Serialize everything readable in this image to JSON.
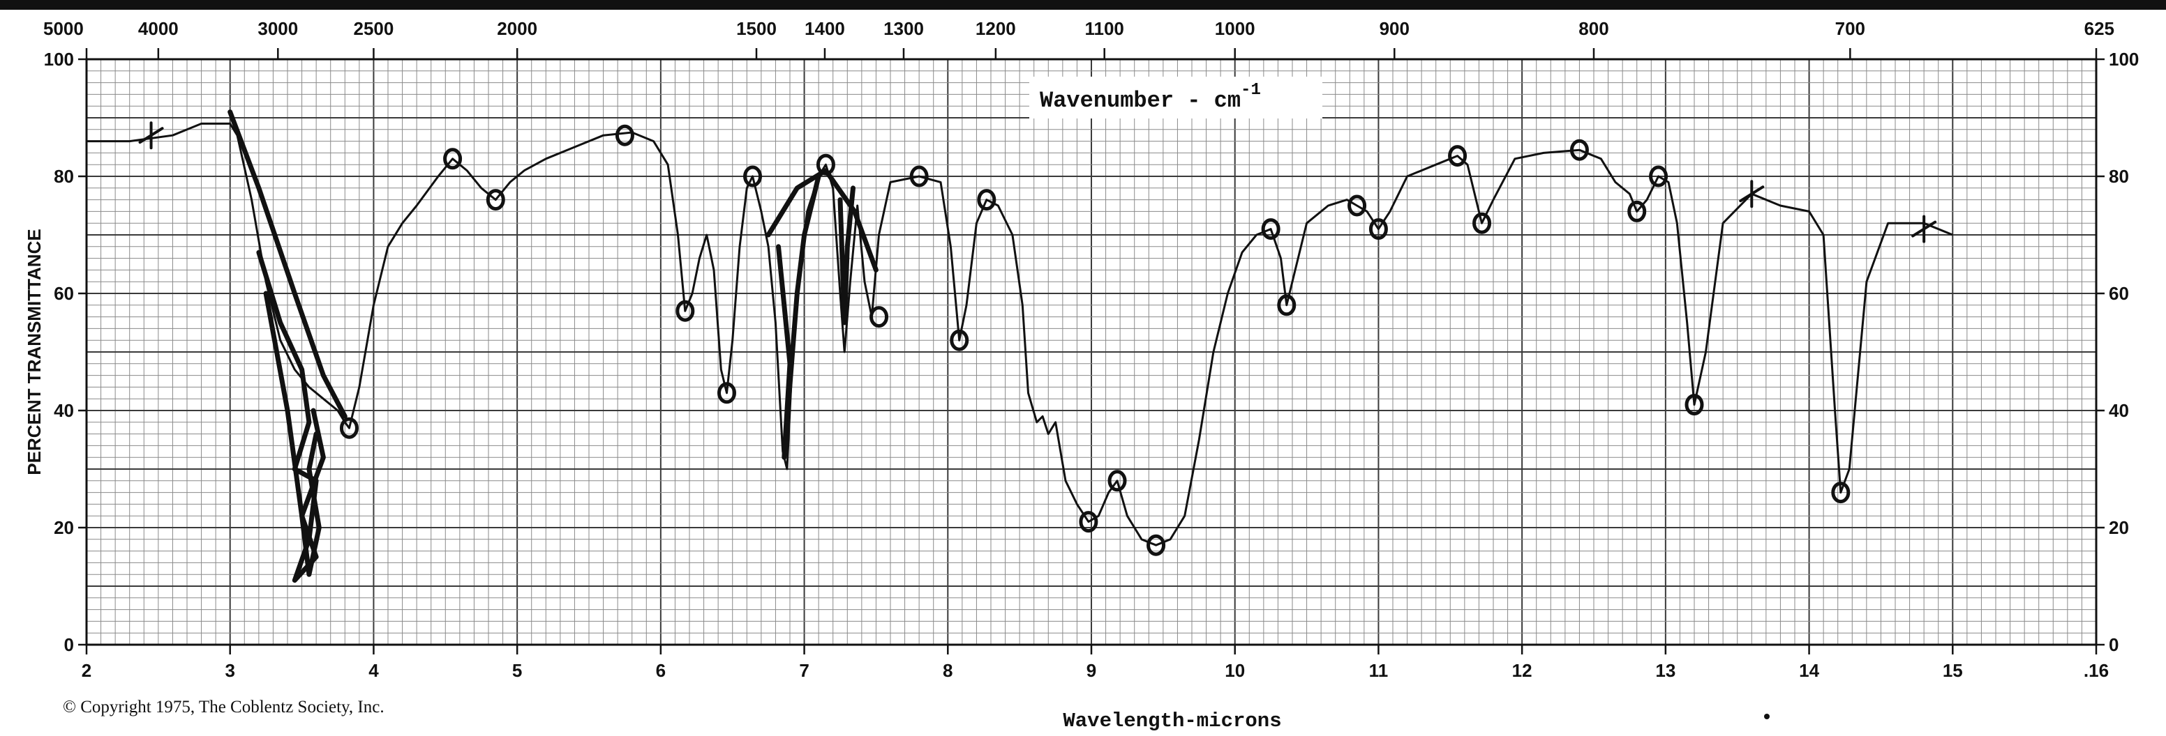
{
  "chart_data": {
    "type": "line",
    "xlabel": "Wavelength-microns",
    "top_axis_label": "Wavenumber - cm",
    "top_axis_label_sup": "-1",
    "ylabel": "PERCENT TRANSMITTANCE",
    "copyright": "© Copyright 1975, The Coblentz Society, Inc.",
    "xlim": [
      2,
      16
    ],
    "ylim": [
      0,
      100
    ],
    "grid": true,
    "x_ticks": [
      "2",
      "3",
      "4",
      "5",
      "6",
      "7",
      "8",
      "9",
      "10",
      "11",
      "12",
      "13",
      "14",
      "15",
      ".16"
    ],
    "y_ticks_left": [
      "0",
      "20",
      "40",
      "60",
      "80",
      "100"
    ],
    "y_ticks_right": [
      "0",
      "20",
      "40",
      "60",
      "80",
      "100"
    ],
    "top_ticks": [
      {
        "label": "5000",
        "wavenumber": 5000
      },
      {
        "label": "4000",
        "wavenumber": 4000
      },
      {
        "label": "3000",
        "wavenumber": 3000
      },
      {
        "label": "2500",
        "wavenumber": 2500
      },
      {
        "label": "2000",
        "wavenumber": 2000
      },
      {
        "label": "1500",
        "wavenumber": 1500
      },
      {
        "label": "1400",
        "wavenumber": 1400
      },
      {
        "label": "1300",
        "wavenumber": 1300
      },
      {
        "label": "1200",
        "wavenumber": 1200
      },
      {
        "label": "1100",
        "wavenumber": 1100
      },
      {
        "label": "1000",
        "wavenumber": 1000
      },
      {
        "label": "900",
        "wavenumber": 900
      },
      {
        "label": "800",
        "wavenumber": 800
      },
      {
        "label": "700",
        "wavenumber": 700
      },
      {
        "label": "625",
        "wavenumber": 625
      }
    ],
    "series": [
      {
        "points": [
          [
            2.0,
            86
          ],
          [
            2.3,
            86
          ],
          [
            2.6,
            87
          ],
          [
            2.8,
            89
          ],
          [
            3.0,
            89
          ],
          [
            3.05,
            87
          ],
          [
            3.15,
            76
          ],
          [
            3.25,
            62
          ],
          [
            3.35,
            52
          ],
          [
            3.45,
            47
          ],
          [
            3.55,
            44
          ],
          [
            3.65,
            42
          ],
          [
            3.75,
            40
          ],
          [
            3.8,
            38
          ],
          [
            3.83,
            37
          ],
          [
            3.9,
            44
          ],
          [
            4.0,
            58
          ],
          [
            4.1,
            68
          ],
          [
            4.2,
            72
          ],
          [
            4.3,
            75
          ],
          [
            4.45,
            80
          ],
          [
            4.55,
            83
          ],
          [
            4.65,
            81
          ],
          [
            4.75,
            78
          ],
          [
            4.85,
            76
          ],
          [
            4.95,
            79
          ],
          [
            5.05,
            81
          ],
          [
            5.2,
            83
          ],
          [
            5.4,
            85
          ],
          [
            5.6,
            87
          ],
          [
            5.8,
            87.5
          ],
          [
            5.95,
            86
          ],
          [
            6.05,
            82
          ],
          [
            6.12,
            70
          ],
          [
            6.17,
            57
          ],
          [
            6.22,
            60
          ],
          [
            6.27,
            66
          ],
          [
            6.32,
            70
          ],
          [
            6.37,
            64
          ],
          [
            6.42,
            47
          ],
          [
            6.46,
            43
          ],
          [
            6.5,
            52
          ],
          [
            6.55,
            68
          ],
          [
            6.6,
            78
          ],
          [
            6.64,
            80
          ],
          [
            6.7,
            74
          ],
          [
            6.75,
            68
          ],
          [
            6.8,
            55
          ],
          [
            6.85,
            33
          ],
          [
            6.88,
            30
          ],
          [
            6.92,
            50
          ],
          [
            6.97,
            64
          ],
          [
            7.02,
            74
          ],
          [
            7.1,
            80
          ],
          [
            7.15,
            82
          ],
          [
            7.2,
            78
          ],
          [
            7.25,
            60
          ],
          [
            7.28,
            50
          ],
          [
            7.32,
            62
          ],
          [
            7.37,
            75
          ],
          [
            7.42,
            62
          ],
          [
            7.47,
            56
          ],
          [
            7.52,
            70
          ],
          [
            7.6,
            79
          ],
          [
            7.8,
            80
          ],
          [
            7.95,
            79
          ],
          [
            8.02,
            68
          ],
          [
            8.08,
            52
          ],
          [
            8.13,
            58
          ],
          [
            8.2,
            72
          ],
          [
            8.27,
            76
          ],
          [
            8.35,
            75
          ],
          [
            8.45,
            70
          ],
          [
            8.52,
            58
          ],
          [
            8.56,
            43
          ],
          [
            8.62,
            38
          ],
          [
            8.66,
            39
          ],
          [
            8.7,
            36
          ],
          [
            8.75,
            38
          ],
          [
            8.82,
            28
          ],
          [
            8.9,
            24
          ],
          [
            8.98,
            21
          ],
          [
            9.05,
            22
          ],
          [
            9.12,
            26
          ],
          [
            9.18,
            28
          ],
          [
            9.25,
            22
          ],
          [
            9.35,
            18
          ],
          [
            9.45,
            17
          ],
          [
            9.55,
            18
          ],
          [
            9.65,
            22
          ],
          [
            9.75,
            35
          ],
          [
            9.85,
            50
          ],
          [
            9.95,
            60
          ],
          [
            10.05,
            67
          ],
          [
            10.15,
            70
          ],
          [
            10.25,
            71
          ],
          [
            10.32,
            66
          ],
          [
            10.36,
            58
          ],
          [
            10.42,
            64
          ],
          [
            10.5,
            72
          ],
          [
            10.65,
            75
          ],
          [
            10.78,
            76
          ],
          [
            10.85,
            75
          ],
          [
            10.92,
            74
          ],
          [
            11.0,
            71
          ],
          [
            11.08,
            74
          ],
          [
            11.2,
            80
          ],
          [
            11.4,
            82
          ],
          [
            11.55,
            83.5
          ],
          [
            11.62,
            82
          ],
          [
            11.68,
            76
          ],
          [
            11.72,
            72
          ],
          [
            11.8,
            76
          ],
          [
            11.95,
            83
          ],
          [
            12.15,
            84
          ],
          [
            12.4,
            84.5
          ],
          [
            12.55,
            83
          ],
          [
            12.65,
            79
          ],
          [
            12.75,
            77
          ],
          [
            12.8,
            74
          ],
          [
            12.87,
            76
          ],
          [
            12.95,
            80
          ],
          [
            13.02,
            79
          ],
          [
            13.08,
            72
          ],
          [
            13.15,
            55
          ],
          [
            13.2,
            41
          ],
          [
            13.28,
            50
          ],
          [
            13.4,
            72
          ],
          [
            13.6,
            77
          ],
          [
            13.8,
            75
          ],
          [
            14.0,
            74
          ],
          [
            14.1,
            70
          ],
          [
            14.18,
            40
          ],
          [
            14.22,
            26
          ],
          [
            14.28,
            30
          ],
          [
            14.4,
            62
          ],
          [
            14.55,
            72
          ],
          [
            14.8,
            72
          ],
          [
            15.0,
            70
          ]
        ]
      }
    ],
    "annotations": [
      {
        "type": "circle",
        "x": 3.83,
        "y": 37
      },
      {
        "type": "circle",
        "x": 4.55,
        "y": 83
      },
      {
        "type": "circle",
        "x": 4.85,
        "y": 76
      },
      {
        "type": "circle",
        "x": 5.75,
        "y": 87
      },
      {
        "type": "circle",
        "x": 6.17,
        "y": 57
      },
      {
        "type": "circle",
        "x": 6.46,
        "y": 43
      },
      {
        "type": "circle",
        "x": 6.64,
        "y": 80
      },
      {
        "type": "circle",
        "x": 7.15,
        "y": 82
      },
      {
        "type": "circle",
        "x": 7.52,
        "y": 56
      },
      {
        "type": "circle",
        "x": 7.8,
        "y": 80
      },
      {
        "type": "circle",
        "x": 8.08,
        "y": 52
      },
      {
        "type": "circle",
        "x": 8.27,
        "y": 76
      },
      {
        "type": "circle",
        "x": 8.98,
        "y": 21
      },
      {
        "type": "circle",
        "x": 9.18,
        "y": 28
      },
      {
        "type": "circle",
        "x": 9.45,
        "y": 17
      },
      {
        "type": "circle",
        "x": 10.25,
        "y": 71
      },
      {
        "type": "circle",
        "x": 10.36,
        "y": 58
      },
      {
        "type": "circle",
        "x": 10.85,
        "y": 75
      },
      {
        "type": "circle",
        "x": 11.0,
        "y": 71
      },
      {
        "type": "circle",
        "x": 11.55,
        "y": 83.5
      },
      {
        "type": "circle",
        "x": 11.72,
        "y": 72
      },
      {
        "type": "circle",
        "x": 12.4,
        "y": 84.5
      },
      {
        "type": "circle",
        "x": 12.8,
        "y": 74
      },
      {
        "type": "circle",
        "x": 12.95,
        "y": 80
      },
      {
        "type": "circle",
        "x": 13.2,
        "y": 41
      },
      {
        "type": "circle",
        "x": 14.22,
        "y": 26
      },
      {
        "type": "cross",
        "x": 2.45,
        "y": 87
      },
      {
        "type": "cross",
        "x": 13.6,
        "y": 77
      },
      {
        "type": "cross",
        "x": 14.8,
        "y": 71
      },
      {
        "type": "stroke",
        "points": [
          [
            3.0,
            91
          ],
          [
            3.2,
            78
          ],
          [
            3.45,
            60
          ],
          [
            3.65,
            46
          ],
          [
            3.8,
            39
          ]
        ]
      },
      {
        "type": "stroke",
        "points": [
          [
            3.2,
            67
          ],
          [
            3.35,
            55
          ],
          [
            3.5,
            47
          ],
          [
            3.55,
            38
          ],
          [
            3.45,
            30
          ],
          [
            3.6,
            28
          ],
          [
            3.55,
            18
          ],
          [
            3.45,
            11
          ],
          [
            3.6,
            15
          ],
          [
            3.5,
            22
          ],
          [
            3.65,
            32
          ],
          [
            3.58,
            40
          ]
        ]
      },
      {
        "type": "stroke",
        "points": [
          [
            3.25,
            60
          ],
          [
            3.4,
            40
          ],
          [
            3.5,
            22
          ],
          [
            3.55,
            12
          ],
          [
            3.62,
            20
          ],
          [
            3.55,
            30
          ],
          [
            3.6,
            36
          ]
        ]
      },
      {
        "type": "stroke",
        "points": [
          [
            6.75,
            70
          ],
          [
            6.95,
            78
          ],
          [
            7.15,
            81
          ],
          [
            7.35,
            74
          ],
          [
            7.5,
            64
          ]
        ]
      },
      {
        "type": "stroke",
        "points": [
          [
            6.82,
            68
          ],
          [
            6.9,
            48
          ],
          [
            6.86,
            32
          ],
          [
            6.95,
            60
          ],
          [
            7.0,
            70
          ],
          [
            7.1,
            80
          ]
        ]
      },
      {
        "type": "stroke",
        "points": [
          [
            7.25,
            76
          ],
          [
            7.28,
            55
          ],
          [
            7.3,
            68
          ],
          [
            7.34,
            78
          ]
        ]
      }
    ]
  }
}
